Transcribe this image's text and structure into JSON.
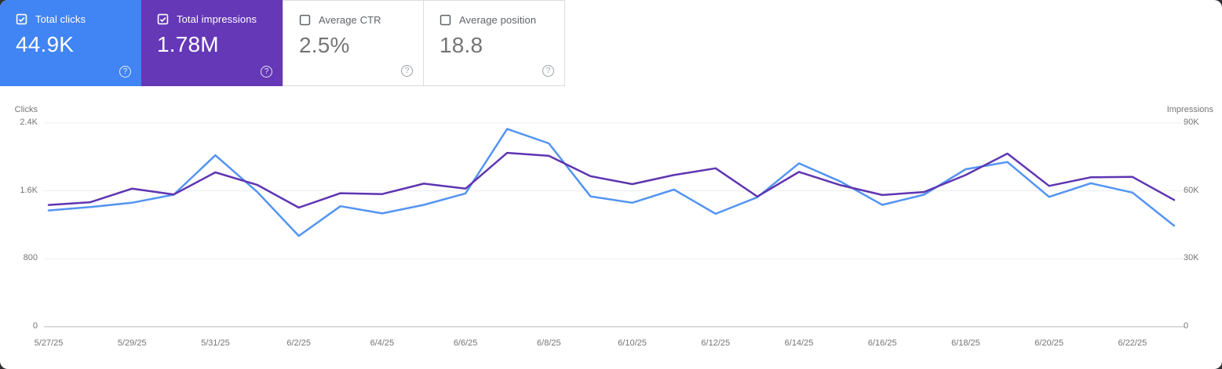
{
  "cards": [
    {
      "label": "Total clicks",
      "value": "44.9K",
      "checked": true,
      "bg": "#4184f3"
    },
    {
      "label": "Total impressions",
      "value": "1.78M",
      "checked": true,
      "bg": "#6438b6"
    },
    {
      "label": "Average CTR",
      "value": "2.5%",
      "checked": false,
      "bg": "#ffffff"
    },
    {
      "label": "Average position",
      "value": "18.8",
      "checked": false,
      "bg": "#ffffff"
    }
  ],
  "icons": {
    "help": "?"
  },
  "chart_data": {
    "type": "line",
    "x": [
      "5/27/25",
      "5/28/25",
      "5/29/25",
      "5/30/25",
      "5/31/25",
      "6/1/25",
      "6/2/25",
      "6/3/25",
      "6/4/25",
      "6/5/25",
      "6/6/25",
      "6/7/25",
      "6/8/25",
      "6/9/25",
      "6/10/25",
      "6/11/25",
      "6/12/25",
      "6/13/25",
      "6/14/25",
      "6/15/25",
      "6/16/25",
      "6/17/25",
      "6/18/25",
      "6/19/25",
      "6/20/25",
      "6/21/25",
      "6/22/25",
      "6/23/25"
    ],
    "x_tick_labels": [
      "5/27/25",
      "5/29/25",
      "5/31/25",
      "6/2/25",
      "6/4/25",
      "6/6/25",
      "6/8/25",
      "6/10/25",
      "6/12/25",
      "6/14/25",
      "6/16/25",
      "6/18/25",
      "6/20/25",
      "6/22/25"
    ],
    "series": [
      {
        "name": "Clicks",
        "axis": "left",
        "color": "#5494f2",
        "values": [
          1370,
          1410,
          1460,
          1555,
          2020,
          1590,
          1070,
          1420,
          1335,
          1435,
          1570,
          2330,
          2160,
          1535,
          1460,
          1615,
          1330,
          1525,
          1925,
          1710,
          1435,
          1555,
          1855,
          1940,
          1530,
          1690,
          1580,
          1190
        ]
      },
      {
        "name": "Impressions",
        "axis": "right",
        "color": "#5e35b1",
        "values": [
          53800,
          55000,
          61000,
          58400,
          68200,
          62700,
          52600,
          59000,
          58600,
          63200,
          61000,
          76800,
          75500,
          66500,
          63000,
          67000,
          70000,
          57500,
          68400,
          62500,
          58200,
          59500,
          67000,
          76500,
          62200,
          66000,
          66200,
          56000
        ]
      }
    ],
    "left_axis": {
      "title": "Clicks",
      "ticks": [
        "0",
        "800",
        "1.6K",
        "2.4K"
      ],
      "max": 2400
    },
    "right_axis": {
      "title": "Impressions",
      "ticks": [
        "0",
        "30K",
        "60K",
        "90K"
      ],
      "max": 90000
    },
    "grid": true,
    "legend": "none",
    "grid_color": "#ecedef",
    "axis_line_color": "#c2c6c9"
  }
}
